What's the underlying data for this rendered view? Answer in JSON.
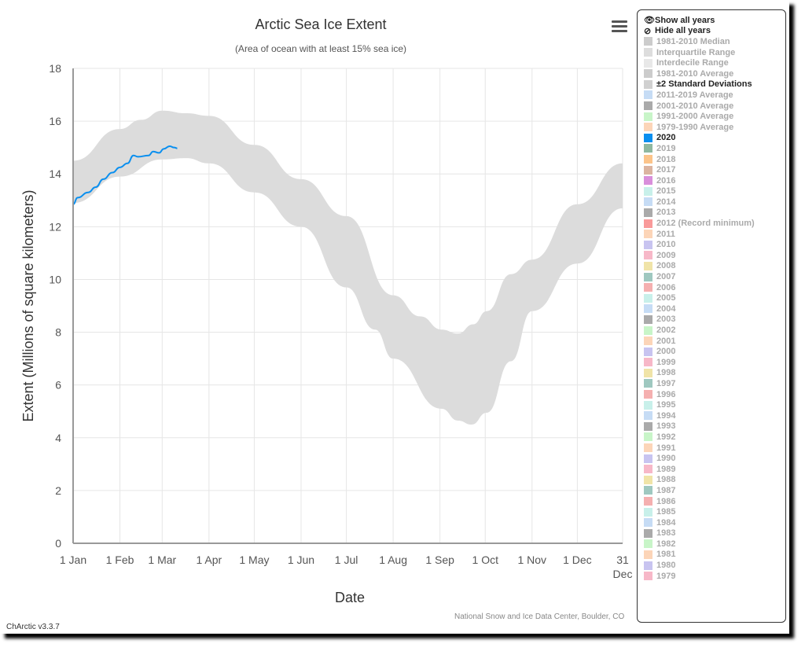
{
  "app_version": "ChArctic v3.3.7",
  "credit": "National Snow and Ice Data Center, Boulder, CO",
  "legend": {
    "show_all": "Show all years",
    "hide_all": "Hide all years",
    "items": [
      {
        "label": "1981-2010 Median",
        "color": "#cccccc",
        "active": false
      },
      {
        "label": "Interquartile Range",
        "color": "#dddddd",
        "active": false
      },
      {
        "label": "Interdecile Range",
        "color": "#e8e8e8",
        "active": false
      },
      {
        "label": "1981-2010 Average",
        "color": "#cccccc",
        "active": false
      },
      {
        "label": "±2 Standard Deviations",
        "color": "#d0d0d0",
        "active": true
      },
      {
        "label": "2011-2019 Average",
        "color": "#c6dcf5",
        "active": false
      },
      {
        "label": "2001-2010 Average",
        "color": "#aaaaaa",
        "active": false
      },
      {
        "label": "1991-2000 Average",
        "color": "#c8f5c8",
        "active": false
      },
      {
        "label": "1979-1990 Average",
        "color": "#fcd5b8",
        "active": false
      },
      {
        "label": "2020",
        "color": "#0a8fef",
        "active": true
      },
      {
        "label": "2019",
        "color": "#8fb8a0",
        "active": false
      },
      {
        "label": "2018",
        "color": "#fcc48a",
        "active": false
      },
      {
        "label": "2017",
        "color": "#dbb4a0",
        "active": false
      },
      {
        "label": "2016",
        "color": "#d98fdb",
        "active": false
      },
      {
        "label": "2015",
        "color": "#c8f0ea",
        "active": false
      },
      {
        "label": "2014",
        "color": "#c6dcf5",
        "active": false
      },
      {
        "label": "2013",
        "color": "#aaaaaa",
        "active": false
      },
      {
        "label": "2012 (Record minimum)",
        "color": "#f99a9a",
        "active": false
      },
      {
        "label": "2011",
        "color": "#fcd5b8",
        "active": false
      },
      {
        "label": "2010",
        "color": "#c8c4f0",
        "active": false
      },
      {
        "label": "2009",
        "color": "#f7b8c8",
        "active": false
      },
      {
        "label": "2008",
        "color": "#f0e4a8",
        "active": false
      },
      {
        "label": "2007",
        "color": "#9fc8c0",
        "active": false
      },
      {
        "label": "2006",
        "color": "#f5b0b0",
        "active": false
      },
      {
        "label": "2005",
        "color": "#c8f0ea",
        "active": false
      },
      {
        "label": "2004",
        "color": "#c6dcf5",
        "active": false
      },
      {
        "label": "2003",
        "color": "#aaaaaa",
        "active": false
      },
      {
        "label": "2002",
        "color": "#c8f5c8",
        "active": false
      },
      {
        "label": "2001",
        "color": "#fcd5b8",
        "active": false
      },
      {
        "label": "2000",
        "color": "#c8c4f0",
        "active": false
      },
      {
        "label": "1999",
        "color": "#f7b8c8",
        "active": false
      },
      {
        "label": "1998",
        "color": "#f0e4a8",
        "active": false
      },
      {
        "label": "1997",
        "color": "#9fc8c0",
        "active": false
      },
      {
        "label": "1996",
        "color": "#f5b0b0",
        "active": false
      },
      {
        "label": "1995",
        "color": "#c8f0ea",
        "active": false
      },
      {
        "label": "1994",
        "color": "#c6dcf5",
        "active": false
      },
      {
        "label": "1993",
        "color": "#aaaaaa",
        "active": false
      },
      {
        "label": "1992",
        "color": "#c8f5c8",
        "active": false
      },
      {
        "label": "1991",
        "color": "#fcd5b8",
        "active": false
      },
      {
        "label": "1990",
        "color": "#c8c4f0",
        "active": false
      },
      {
        "label": "1989",
        "color": "#f7b8c8",
        "active": false
      },
      {
        "label": "1988",
        "color": "#f0e4a8",
        "active": false
      },
      {
        "label": "1987",
        "color": "#9fc8c0",
        "active": false
      },
      {
        "label": "1986",
        "color": "#f5b0b0",
        "active": false
      },
      {
        "label": "1985",
        "color": "#c8f0ea",
        "active": false
      },
      {
        "label": "1984",
        "color": "#c6dcf5",
        "active": false
      },
      {
        "label": "1983",
        "color": "#aaaaaa",
        "active": false
      },
      {
        "label": "1982",
        "color": "#c8f5c8",
        "active": false
      },
      {
        "label": "1981",
        "color": "#fcd5b8",
        "active": false
      },
      {
        "label": "1980",
        "color": "#c8c4f0",
        "active": false
      },
      {
        "label": "1979",
        "color": "#f7b8c8",
        "active": false
      }
    ]
  },
  "chart_data": {
    "type": "area",
    "title": "Arctic Sea Ice Extent",
    "subtitle": "(Area of ocean with at least 15% sea ice)",
    "xlabel": "Date",
    "ylabel": "Extent (Millions of square kilometers)",
    "ylim": [
      0,
      18
    ],
    "yticks": [
      0,
      2,
      4,
      6,
      8,
      10,
      12,
      14,
      16,
      18
    ],
    "xticks": [
      {
        "label": "1 Jan",
        "day": 0
      },
      {
        "label": "1 Feb",
        "day": 31
      },
      {
        "label": "1 Mar",
        "day": 59
      },
      {
        "label": "1 Apr",
        "day": 90
      },
      {
        "label": "1 May",
        "day": 120
      },
      {
        "label": "1 Jun",
        "day": 151
      },
      {
        "label": "1 Jul",
        "day": 181
      },
      {
        "label": "1 Aug",
        "day": 212
      },
      {
        "label": "1 Sep",
        "day": 243
      },
      {
        "label": "1 Oct",
        "day": 273
      },
      {
        "label": "1 Nov",
        "day": 304
      },
      {
        "label": "1 Dec",
        "day": 334
      },
      {
        "label": "31 Dec",
        "day": 364
      }
    ],
    "xlim": [
      0,
      364
    ],
    "band": {
      "name": "±2 Standard Deviations",
      "color": "#dcdcdc",
      "upper": [
        [
          0,
          14.5
        ],
        [
          31,
          15.7
        ],
        [
          45,
          16.05
        ],
        [
          59,
          16.4
        ],
        [
          75,
          16.3
        ],
        [
          90,
          16.2
        ],
        [
          120,
          15.1
        ],
        [
          151,
          13.8
        ],
        [
          181,
          12.4
        ],
        [
          212,
          9.4
        ],
        [
          230,
          8.6
        ],
        [
          244,
          8.1
        ],
        [
          255,
          7.95
        ],
        [
          265,
          8.3
        ],
        [
          274,
          8.8
        ],
        [
          290,
          10.2
        ],
        [
          304,
          10.75
        ],
        [
          334,
          12.85
        ],
        [
          364,
          14.4
        ]
      ],
      "lower": [
        [
          0,
          12.9
        ],
        [
          31,
          13.9
        ],
        [
          59,
          14.55
        ],
        [
          75,
          14.6
        ],
        [
          90,
          14.4
        ],
        [
          120,
          13.3
        ],
        [
          151,
          12.0
        ],
        [
          181,
          9.7
        ],
        [
          200,
          8.1
        ],
        [
          212,
          7.0
        ],
        [
          244,
          5.1
        ],
        [
          255,
          4.65
        ],
        [
          264,
          4.5
        ],
        [
          274,
          4.95
        ],
        [
          290,
          6.9
        ],
        [
          304,
          8.8
        ],
        [
          334,
          10.6
        ],
        [
          364,
          12.7
        ]
      ]
    },
    "series": [
      {
        "name": "2020",
        "color": "#0a8fef",
        "points": [
          [
            0,
            12.85
          ],
          [
            3,
            13.1
          ],
          [
            10,
            13.3
          ],
          [
            15,
            13.5
          ],
          [
            20,
            13.8
          ],
          [
            26,
            14.05
          ],
          [
            31,
            14.25
          ],
          [
            36,
            14.4
          ],
          [
            40,
            14.7
          ],
          [
            43,
            14.65
          ],
          [
            50,
            14.7
          ],
          [
            53,
            14.85
          ],
          [
            57,
            14.8
          ],
          [
            60,
            14.95
          ],
          [
            64,
            15.05
          ],
          [
            67,
            15.0
          ],
          [
            69,
            14.97
          ]
        ]
      }
    ]
  }
}
